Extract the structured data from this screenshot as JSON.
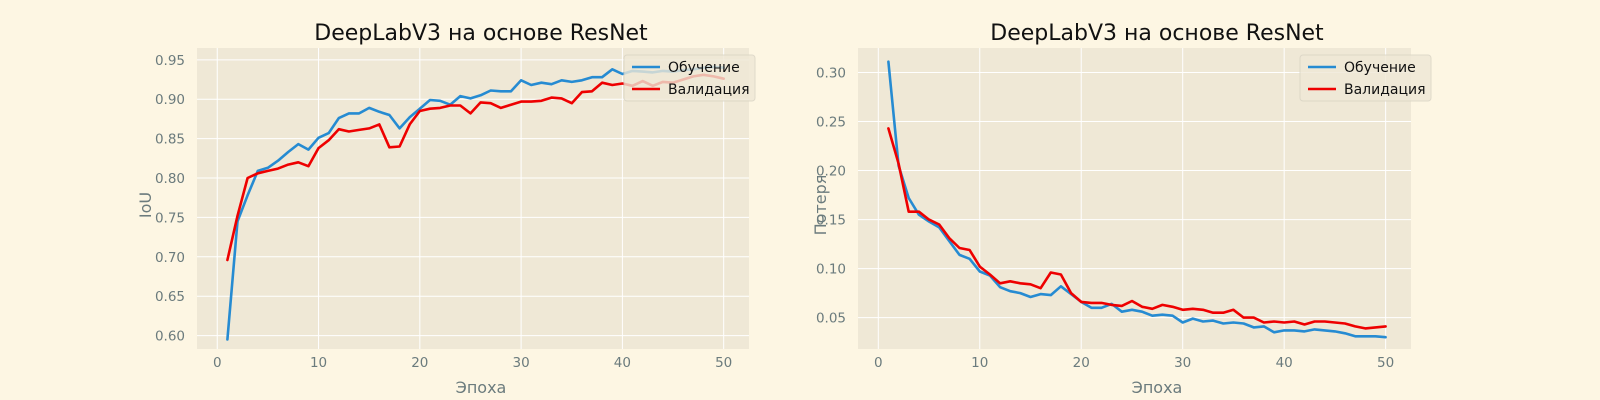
{
  "colors": {
    "figure_bg": "#fdf6e3",
    "axes_bg": "#efe8d6",
    "grid": "#ffffff",
    "train": "#268bd2",
    "val": "#ee0000"
  },
  "chart_data": [
    {
      "type": "line",
      "title": "DeepLabV3 на основе ResNet",
      "xlabel": "Эпоха",
      "ylabel": "IoU",
      "xlim": [
        -2,
        52.5
      ],
      "ylim": [
        0.583,
        0.965
      ],
      "xticks": [
        "0",
        "10",
        "20",
        "30",
        "40",
        "50"
      ],
      "yticks": [
        "0.60",
        "0.65",
        "0.70",
        "0.75",
        "0.80",
        "0.85",
        "0.90",
        "0.95"
      ],
      "grid": true,
      "legend_position": "top-right",
      "x": [
        1,
        2,
        3,
        4,
        5,
        6,
        7,
        8,
        9,
        10,
        11,
        12,
        13,
        14,
        15,
        16,
        17,
        18,
        19,
        20,
        21,
        22,
        23,
        24,
        25,
        26,
        27,
        28,
        29,
        30,
        31,
        32,
        33,
        34,
        35,
        36,
        37,
        38,
        39,
        40,
        41,
        42,
        43,
        44,
        45,
        46,
        47,
        48,
        49,
        50
      ],
      "series": [
        {
          "name": "Обучение",
          "color": "#268bd2",
          "values": [
            0.595,
            0.745,
            0.778,
            0.809,
            0.813,
            0.822,
            0.833,
            0.843,
            0.836,
            0.851,
            0.857,
            0.876,
            0.882,
            0.882,
            0.889,
            0.884,
            0.88,
            0.863,
            0.877,
            0.888,
            0.899,
            0.898,
            0.893,
            0.904,
            0.901,
            0.905,
            0.911,
            0.91,
            0.91,
            0.924,
            0.918,
            0.921,
            0.919,
            0.924,
            0.922,
            0.924,
            0.928,
            0.928,
            0.938,
            0.932,
            0.936,
            0.935,
            0.934,
            0.936,
            0.935,
            0.937,
            0.938,
            0.94,
            0.941,
            0.94
          ]
        },
        {
          "name": "Валидация",
          "color": "#ee0000",
          "values": [
            0.696,
            0.752,
            0.8,
            0.806,
            0.809,
            0.812,
            0.817,
            0.82,
            0.815,
            0.838,
            0.848,
            0.862,
            0.859,
            0.861,
            0.863,
            0.868,
            0.839,
            0.84,
            0.868,
            0.885,
            0.888,
            0.889,
            0.892,
            0.892,
            0.882,
            0.896,
            0.895,
            0.889,
            0.893,
            0.897,
            0.897,
            0.898,
            0.902,
            0.901,
            0.895,
            0.909,
            0.91,
            0.921,
            0.918,
            0.92,
            0.917,
            0.923,
            0.917,
            0.922,
            0.921,
            0.925,
            0.929,
            0.931,
            0.929,
            0.926
          ]
        }
      ]
    },
    {
      "type": "line",
      "title": "DeepLabV3 на основе ResNet",
      "xlabel": "Эпоха",
      "ylabel": "Потеря",
      "xlim": [
        -2,
        52.5
      ],
      "ylim": [
        0.018,
        0.325
      ],
      "xticks": [
        "0",
        "10",
        "20",
        "30",
        "40",
        "50"
      ],
      "yticks": [
        "0.05",
        "0.10",
        "0.15",
        "0.20",
        "0.25",
        "0.30"
      ],
      "grid": true,
      "legend_position": "top-right",
      "x": [
        1,
        2,
        3,
        4,
        5,
        6,
        7,
        8,
        9,
        10,
        11,
        12,
        13,
        14,
        15,
        16,
        17,
        18,
        19,
        20,
        21,
        22,
        23,
        24,
        25,
        26,
        27,
        28,
        29,
        30,
        31,
        32,
        33,
        34,
        35,
        36,
        37,
        38,
        39,
        40,
        41,
        42,
        43,
        44,
        45,
        46,
        47,
        48,
        49,
        50
      ],
      "series": [
        {
          "name": "Обучение",
          "color": "#268bd2",
          "values": [
            0.311,
            0.205,
            0.172,
            0.155,
            0.148,
            0.142,
            0.128,
            0.114,
            0.11,
            0.097,
            0.093,
            0.081,
            0.077,
            0.075,
            0.071,
            0.074,
            0.073,
            0.082,
            0.074,
            0.066,
            0.06,
            0.06,
            0.064,
            0.056,
            0.058,
            0.056,
            0.052,
            0.053,
            0.052,
            0.045,
            0.049,
            0.046,
            0.047,
            0.044,
            0.045,
            0.044,
            0.04,
            0.041,
            0.035,
            0.037,
            0.037,
            0.036,
            0.038,
            0.037,
            0.036,
            0.034,
            0.031,
            0.031,
            0.031,
            0.03
          ]
        },
        {
          "name": "Валидация",
          "color": "#ee0000",
          "values": [
            0.243,
            0.207,
            0.158,
            0.158,
            0.15,
            0.145,
            0.131,
            0.121,
            0.119,
            0.102,
            0.094,
            0.085,
            0.087,
            0.085,
            0.084,
            0.08,
            0.096,
            0.094,
            0.075,
            0.066,
            0.065,
            0.065,
            0.063,
            0.062,
            0.067,
            0.061,
            0.059,
            0.063,
            0.061,
            0.058,
            0.059,
            0.058,
            0.055,
            0.055,
            0.058,
            0.05,
            0.05,
            0.045,
            0.046,
            0.045,
            0.046,
            0.043,
            0.046,
            0.046,
            0.045,
            0.044,
            0.041,
            0.039,
            0.04,
            0.041
          ]
        }
      ]
    }
  ]
}
